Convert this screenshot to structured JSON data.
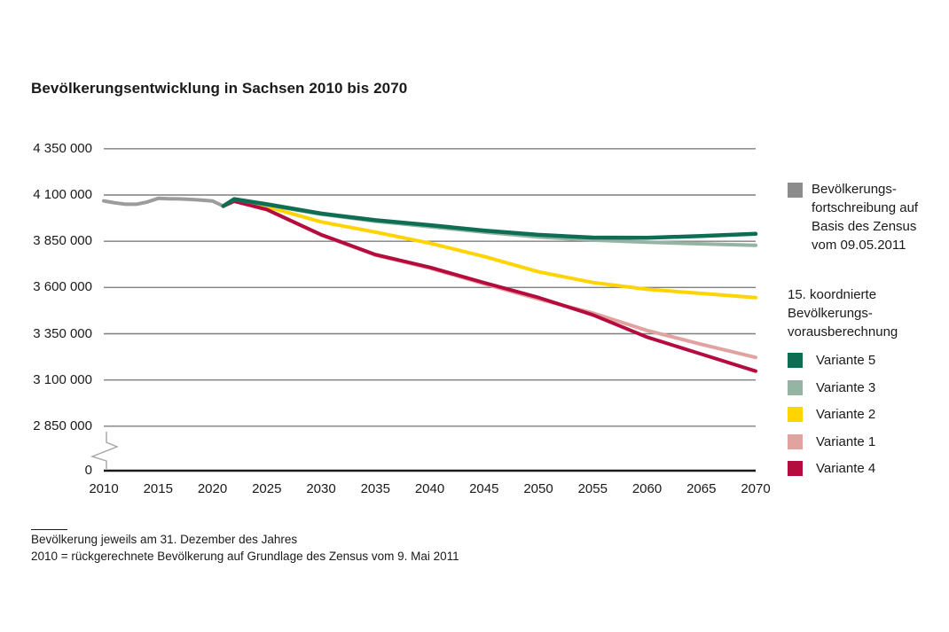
{
  "title": "Bevölkerungsentwicklung in Sachsen 2010 bis 2070",
  "legend": {
    "fortschreibung": {
      "color": "#8c8c8c",
      "lines": [
        "Bevölkerungs-",
        "fortschreibung auf",
        "Basis des Zensus",
        "vom 09.05.2011"
      ]
    },
    "subtitle_lines": [
      "15. koordnierte",
      "Bevölkerungs-",
      "vorausberechnung"
    ],
    "variants": [
      {
        "label": "Variante 5",
        "color": "#0e6e54"
      },
      {
        "label": "Variante 3",
        "color": "#95b4a3"
      },
      {
        "label": "Variante 2",
        "color": "#ffd400"
      },
      {
        "label": "Variante 1",
        "color": "#e2a29f"
      },
      {
        "label": "Variante 4",
        "color": "#b40c3e"
      }
    ]
  },
  "footnotes": [
    "Bevölkerung jeweils am 31. Dezember des Jahres",
    "2010 = rückgerechnete Bevölkerung auf Grundlage des Zensus vom 9. Mai 2011"
  ],
  "chart_data": {
    "type": "line",
    "title": "Bevölkerungsentwicklung in Sachsen 2010 bis 2070",
    "xlabel": "",
    "ylabel": "",
    "xlim": [
      2010,
      2070
    ],
    "grid": "horizontal-gridlines",
    "y_axis_break": true,
    "legend_position": "right",
    "x_ticks": [
      2010,
      2015,
      2020,
      2025,
      2030,
      2035,
      2040,
      2045,
      2050,
      2055,
      2060,
      2065,
      2070
    ],
    "y_ticks": [
      {
        "label": "4 350 000",
        "value": 4350000
      },
      {
        "label": "4 100 000",
        "value": 4100000
      },
      {
        "label": "3 850 000",
        "value": 3850000
      },
      {
        "label": "3 600 000",
        "value": 3600000
      },
      {
        "label": "3 350 000",
        "value": 3350000
      },
      {
        "label": "3 100 000",
        "value": 3100000
      },
      {
        "label": "2 850 000",
        "value": 2850000
      },
      {
        "label": "0",
        "value": 0
      }
    ],
    "series": [
      {
        "name": "Bevölkerungsfortschreibung auf Basis des Zensus vom 09.05.2011",
        "color": "#9c9c9c",
        "width": 4,
        "points": [
          [
            2010,
            4068000
          ],
          [
            2011,
            4058000
          ],
          [
            2012,
            4050000
          ],
          [
            2013,
            4050000
          ],
          [
            2014,
            4062000
          ],
          [
            2015,
            4082000
          ],
          [
            2016,
            4080000
          ],
          [
            2017,
            4079000
          ],
          [
            2018,
            4076000
          ],
          [
            2019,
            4072000
          ],
          [
            2020,
            4068000
          ],
          [
            2021,
            4040000
          ]
        ]
      },
      {
        "name": "Variante 1",
        "color": "#e2a29f",
        "width": 4,
        "points": [
          [
            2021,
            4040000
          ],
          [
            2022,
            4068000
          ],
          [
            2025,
            4020000
          ],
          [
            2030,
            3884000
          ],
          [
            2035,
            3775000
          ],
          [
            2040,
            3705000
          ],
          [
            2045,
            3620000
          ],
          [
            2050,
            3538000
          ],
          [
            2055,
            3462000
          ],
          [
            2060,
            3368000
          ],
          [
            2065,
            3293000
          ],
          [
            2070,
            3222000
          ]
        ]
      },
      {
        "name": "Variante 2",
        "color": "#ffd400",
        "width": 4,
        "points": [
          [
            2021,
            4040000
          ],
          [
            2022,
            4074000
          ],
          [
            2025,
            4037000
          ],
          [
            2030,
            3955000
          ],
          [
            2035,
            3899000
          ],
          [
            2040,
            3840000
          ],
          [
            2045,
            3768000
          ],
          [
            2050,
            3685000
          ],
          [
            2055,
            3627000
          ],
          [
            2060,
            3590000
          ],
          [
            2065,
            3568000
          ],
          [
            2070,
            3545000
          ]
        ]
      },
      {
        "name": "Variante 4",
        "color": "#b40c3e",
        "width": 4,
        "points": [
          [
            2021,
            4040000
          ],
          [
            2022,
            4066000
          ],
          [
            2025,
            4022000
          ],
          [
            2030,
            3886000
          ],
          [
            2035,
            3778000
          ],
          [
            2040,
            3709000
          ],
          [
            2045,
            3626000
          ],
          [
            2050,
            3546000
          ],
          [
            2055,
            3452000
          ],
          [
            2060,
            3332000
          ],
          [
            2065,
            3240000
          ],
          [
            2070,
            3148000
          ]
        ]
      },
      {
        "name": "Variante 3",
        "color": "#95b4a3",
        "width": 4,
        "points": [
          [
            2021,
            4040000
          ],
          [
            2022,
            4077000
          ],
          [
            2025,
            4047000
          ],
          [
            2030,
            3996000
          ],
          [
            2035,
            3958000
          ],
          [
            2040,
            3929000
          ],
          [
            2045,
            3899000
          ],
          [
            2050,
            3873000
          ],
          [
            2055,
            3856000
          ],
          [
            2060,
            3845000
          ],
          [
            2065,
            3836000
          ],
          [
            2070,
            3828000
          ]
        ]
      },
      {
        "name": "Variante 5",
        "color": "#0e6e54",
        "width": 4.5,
        "points": [
          [
            2021,
            4040000
          ],
          [
            2022,
            4078000
          ],
          [
            2025,
            4050000
          ],
          [
            2030,
            4000000
          ],
          [
            2035,
            3964000
          ],
          [
            2040,
            3937000
          ],
          [
            2045,
            3908000
          ],
          [
            2050,
            3885000
          ],
          [
            2055,
            3870000
          ],
          [
            2060,
            3869000
          ],
          [
            2065,
            3878000
          ],
          [
            2070,
            3890000
          ]
        ]
      }
    ]
  }
}
